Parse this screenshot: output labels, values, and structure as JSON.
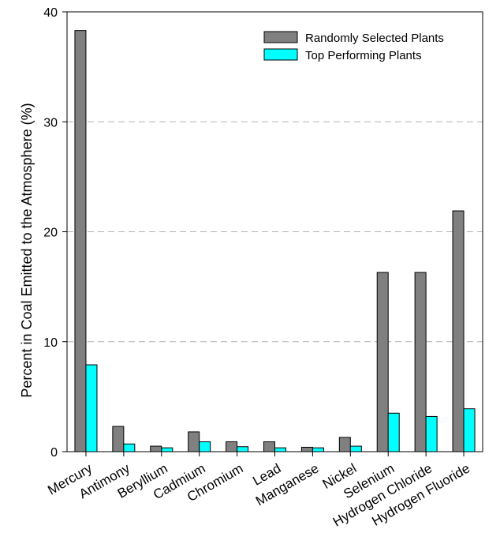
{
  "chart_data": {
    "type": "bar",
    "title": "",
    "xlabel": "",
    "ylabel": "Percent in Coal Emitted to the Atmosphere (%)",
    "ylim": [
      0,
      40
    ],
    "yticks": [
      0,
      10,
      20,
      30,
      40
    ],
    "grid": "horizontal dashed at 10, 20, 30",
    "legend_position": "top-right",
    "categories": [
      "Mercury",
      "Antimony",
      "Beryllium",
      "Cadmium",
      "Chromium",
      "Lead",
      "Manganese",
      "Nickel",
      "Selenium",
      "Hydrogen Chloride",
      "Hydrogen Fluoride"
    ],
    "series": [
      {
        "name": "Randomly Selected Plants",
        "color": "#808080",
        "values": [
          38.3,
          2.3,
          0.5,
          1.8,
          0.9,
          0.9,
          0.4,
          1.3,
          16.3,
          16.3,
          21.9
        ]
      },
      {
        "name": "Top Performing Plants",
        "color": "#00ffff",
        "values": [
          7.9,
          0.7,
          0.35,
          0.9,
          0.45,
          0.35,
          0.35,
          0.5,
          3.5,
          3.2,
          3.9
        ]
      }
    ]
  }
}
